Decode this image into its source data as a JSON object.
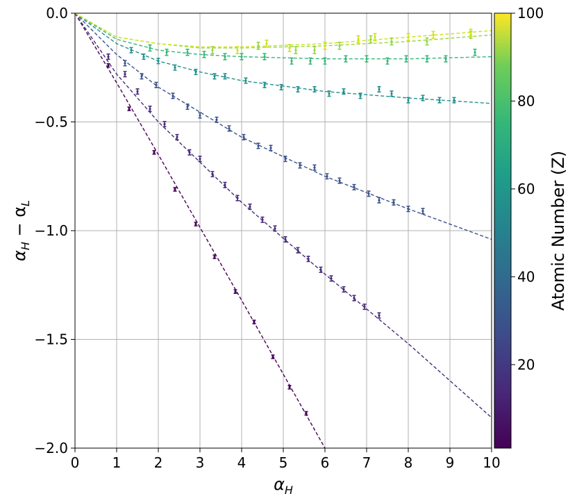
{
  "chart_data": {
    "type": "scatter",
    "x_label": [
      "α",
      "H"
    ],
    "y_label": [
      "α",
      "H",
      " − α",
      "L"
    ],
    "xlim": [
      0,
      10
    ],
    "ylim": [
      -2.0,
      0.0
    ],
    "xticks": [
      0,
      1,
      2,
      3,
      4,
      5,
      6,
      7,
      8,
      9,
      10
    ],
    "yticks": [
      {
        "value": -2.0,
        "label": "−2.0"
      },
      {
        "value": -1.5,
        "label": "−1.5"
      },
      {
        "value": -1.0,
        "label": "−1.0"
      },
      {
        "value": -0.5,
        "label": "−0.5"
      },
      {
        "value": 0.0,
        "label": "0.0"
      }
    ],
    "grid": true,
    "colorbar": {
      "label": "Atomic Number (Z)",
      "clim": [
        1,
        100
      ],
      "ticks": [
        20,
        40,
        60,
        80,
        100
      ],
      "colormap": "viridis"
    },
    "series": [
      {
        "z": 1,
        "color": "#440154",
        "error": 0.008,
        "x": [
          0.8,
          1.3,
          1.9,
          2.4,
          2.9,
          3.35,
          3.85,
          4.3,
          4.75,
          5.15,
          5.55
        ],
        "values": [
          -0.24,
          -0.44,
          -0.64,
          -0.81,
          -0.97,
          -1.12,
          -1.28,
          -1.42,
          -1.58,
          -1.72,
          -1.84
        ],
        "fit_x": [
          0,
          1,
          2,
          4,
          6
        ],
        "fit_y": [
          0,
          -0.32,
          -0.65,
          -1.32,
          -2.0
        ]
      },
      {
        "z": 8,
        "color": "#472c7a",
        "error": 0.012,
        "x": [
          0.8,
          1.2,
          1.5,
          1.8,
          2.15,
          2.45,
          2.75,
          3.0,
          3.3,
          3.6,
          3.9,
          4.2,
          4.5,
          4.8,
          5.05,
          5.35,
          5.6,
          5.9,
          6.15,
          6.45,
          6.7,
          6.95,
          7.3
        ],
        "values": [
          -0.2,
          -0.28,
          -0.36,
          -0.44,
          -0.51,
          -0.57,
          -0.64,
          -0.67,
          -0.74,
          -0.79,
          -0.85,
          -0.89,
          -0.95,
          -0.99,
          -1.04,
          -1.09,
          -1.13,
          -1.18,
          -1.22,
          -1.27,
          -1.31,
          -1.35,
          -1.39
        ],
        "fit_x": [
          0,
          1,
          2,
          4,
          6,
          8,
          10
        ],
        "fit_y": [
          0,
          -0.28,
          -0.5,
          -0.87,
          -1.2,
          -1.52,
          -1.86
        ]
      },
      {
        "z": 26,
        "color": "#3b528b",
        "error": 0.012,
        "x": [
          1.2,
          1.6,
          1.95,
          2.35,
          2.7,
          3.0,
          3.4,
          3.7,
          4.05,
          4.4,
          4.7,
          5.05,
          5.4,
          5.75,
          6.05,
          6.35,
          6.7,
          7.05,
          7.3,
          7.65,
          8.0,
          8.35
        ],
        "values": [
          -0.23,
          -0.29,
          -0.33,
          -0.38,
          -0.43,
          -0.47,
          -0.49,
          -0.53,
          -0.57,
          -0.61,
          -0.62,
          -0.67,
          -0.7,
          -0.71,
          -0.75,
          -0.77,
          -0.8,
          -0.83,
          -0.86,
          -0.87,
          -0.9,
          -0.91
        ],
        "fit_x": [
          0,
          1,
          2,
          4,
          6,
          8,
          10
        ],
        "fit_y": [
          0,
          -0.19,
          -0.34,
          -0.57,
          -0.75,
          -0.9,
          -1.04
        ]
      },
      {
        "z": 47,
        "color": "#21908d",
        "error": 0.012,
        "x": [
          1.35,
          1.65,
          2.0,
          2.4,
          2.9,
          3.35,
          3.6,
          4.1,
          4.55,
          4.95,
          5.35,
          5.75,
          6.1,
          6.45,
          6.85,
          7.3,
          7.6,
          8.0,
          8.35,
          8.75,
          9.1
        ],
        "values": [
          -0.17,
          -0.2,
          -0.22,
          -0.25,
          -0.27,
          -0.29,
          -0.29,
          -0.31,
          -0.33,
          -0.34,
          -0.35,
          -0.35,
          -0.37,
          -0.36,
          -0.38,
          -0.35,
          -0.37,
          -0.4,
          -0.39,
          -0.4,
          -0.4
        ],
        "fit_x": [
          0,
          1,
          2,
          3,
          4,
          6,
          8,
          10
        ],
        "fit_y": [
          0,
          -0.14,
          -0.22,
          -0.27,
          -0.31,
          -0.36,
          -0.39,
          -0.415
        ]
      },
      {
        "z": 62,
        "color": "#35b779",
        "error": 0.014,
        "x": [
          1.8,
          2.2,
          2.7,
          3.1,
          3.6,
          4.0,
          4.55,
          5.2,
          5.65,
          6.0,
          6.5,
          7.0,
          7.5,
          7.95,
          8.45,
          8.9,
          9.6
        ],
        "values": [
          -0.16,
          -0.18,
          -0.18,
          -0.19,
          -0.2,
          -0.2,
          -0.2,
          -0.22,
          -0.22,
          -0.22,
          -0.21,
          -0.21,
          -0.22,
          -0.21,
          -0.21,
          -0.21,
          -0.18
        ],
        "fit_x": [
          0,
          1,
          2,
          3,
          4,
          6,
          8,
          10
        ],
        "fit_y": [
          0,
          -0.12,
          -0.17,
          -0.19,
          -0.2,
          -0.21,
          -0.21,
          -0.2
        ]
      },
      {
        "z": 80,
        "color": "#95d840",
        "error": 0.016,
        "x": [
          3.3,
          4.4,
          5.3,
          5.75,
          6.35,
          7.1,
          7.6,
          8.45,
          9.5
        ],
        "values": [
          -0.17,
          -0.15,
          -0.17,
          -0.17,
          -0.15,
          -0.12,
          -0.13,
          -0.13,
          -0.1
        ],
        "fit_x": [
          0,
          1,
          2,
          3,
          4,
          6,
          8,
          10
        ],
        "fit_y": [
          0,
          -0.11,
          -0.14,
          -0.16,
          -0.16,
          -0.15,
          -0.13,
          -0.1
        ]
      },
      {
        "z": 92,
        "color": "#d0e11c",
        "error": 0.016,
        "x": [
          3.9,
          4.6,
          5.15,
          6.0,
          6.8,
          7.2,
          8.0,
          8.6,
          9.5
        ],
        "values": [
          -0.17,
          -0.14,
          -0.16,
          -0.15,
          -0.12,
          -0.11,
          -0.11,
          -0.1,
          -0.09
        ],
        "fit_x": [
          0,
          1,
          2,
          3,
          4,
          6,
          8,
          10
        ],
        "fit_y": [
          0,
          -0.11,
          -0.14,
          -0.155,
          -0.155,
          -0.14,
          -0.11,
          -0.08
        ]
      }
    ]
  }
}
